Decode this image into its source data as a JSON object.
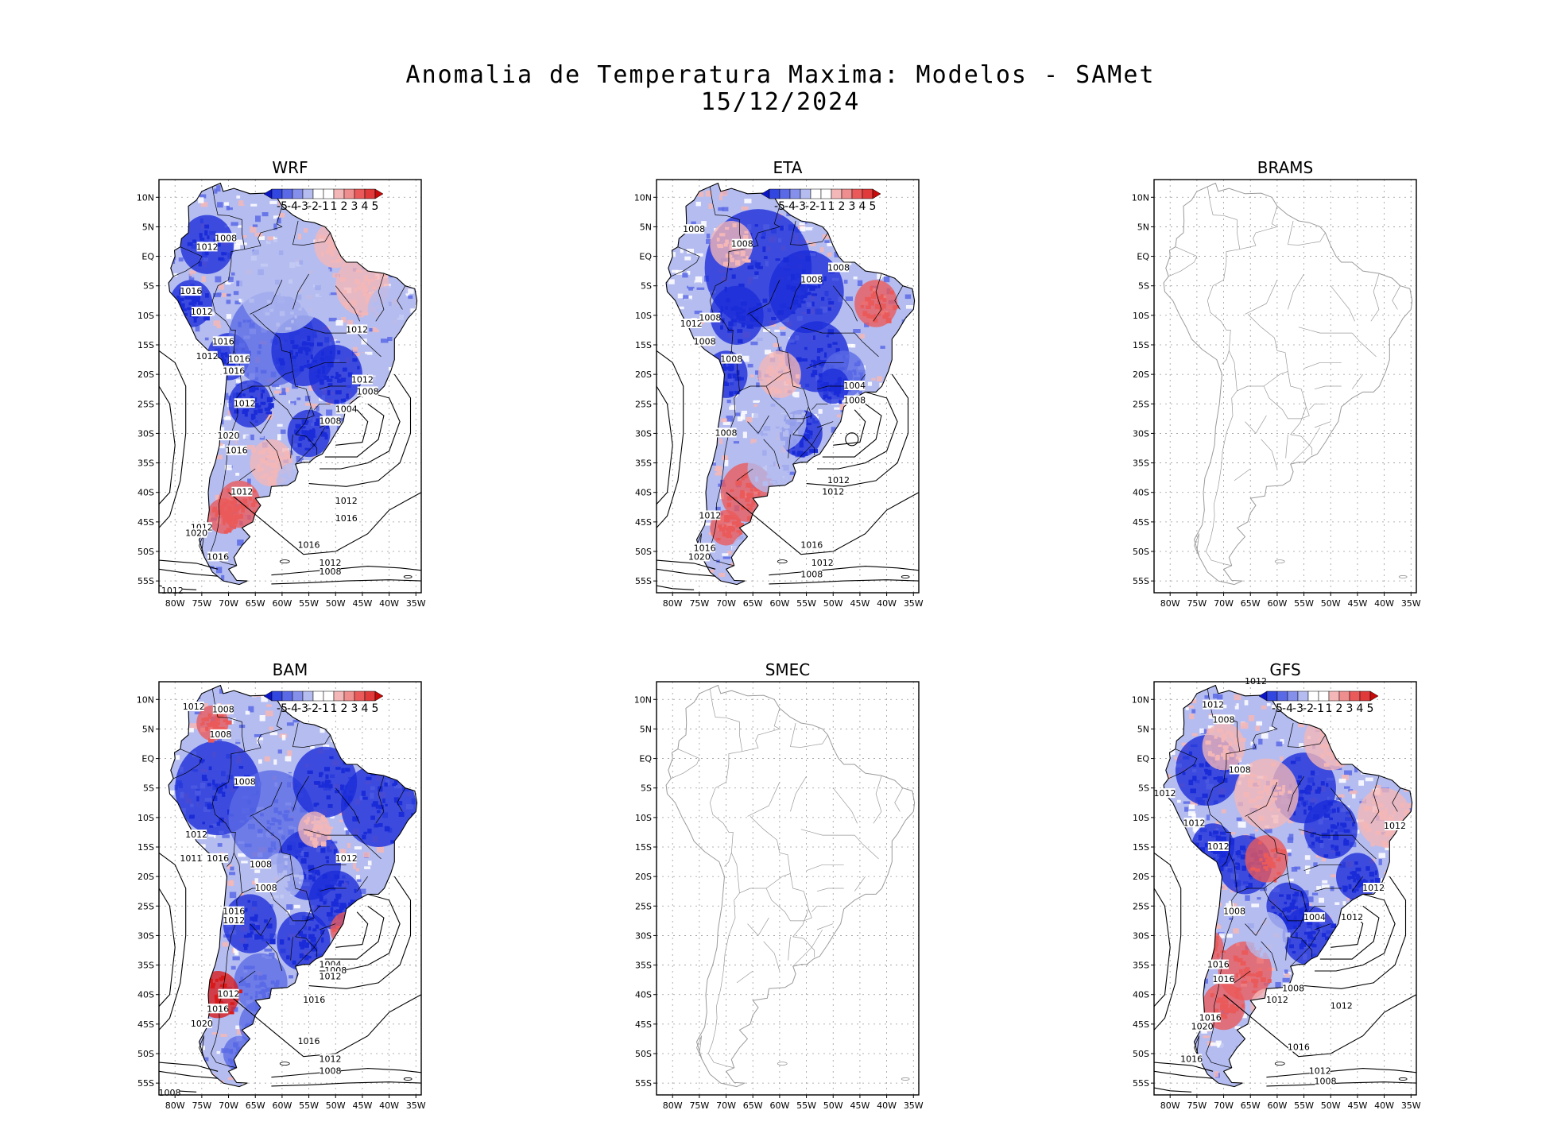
{
  "figure": {
    "title": "Anomalia de Temperatura Maxima: Modelos - SAMet",
    "date": "15/12/2024"
  },
  "colors": {
    "strong_blue": "#1a2bd8",
    "blue": "#5a6ae6",
    "light_blue": "#b4bcf0",
    "white": "#ffffff",
    "light_red": "#f4b7b7",
    "red": "#ea5a5a",
    "strong_red": "#d81a1a",
    "coast_gray": "#9a9a9a",
    "contour": "#000000"
  },
  "axes": {
    "lat_labels": [
      "10N",
      "5N",
      "EQ",
      "5S",
      "10S",
      "15S",
      "20S",
      "25S",
      "30S",
      "35S",
      "40S",
      "45S",
      "50S",
      "55S"
    ],
    "lon_labels": [
      "80W",
      "75W",
      "70W",
      "65W",
      "60W",
      "55W",
      "50W",
      "45W",
      "40W",
      "35W"
    ]
  },
  "colorbar": {
    "labels": [
      "-5",
      "-4",
      "-3",
      "-2",
      "-1",
      "1",
      "2",
      "3",
      "4",
      "5"
    ]
  },
  "panels": [
    {
      "name": "WRF",
      "has_data": true,
      "labels": [
        "1008",
        "1012",
        "1016",
        "1012",
        "1016",
        "1012",
        "1012",
        "1016",
        "1016",
        "1012",
        "1012",
        "1008",
        "1008",
        "1004",
        "1012",
        "1020",
        "1016",
        "1012",
        "1012",
        "1016",
        "1016",
        "1020",
        "1016",
        "1012",
        "1008",
        "1012"
      ]
    },
    {
      "name": "ETA",
      "has_data": true,
      "labels": [
        "1008",
        "1008",
        "1008",
        "1008",
        "1012",
        "1008",
        "1008",
        "1008",
        "1004",
        "1008",
        "1008",
        "1012",
        "1012",
        "1016",
        "1016",
        "1020",
        "1012",
        "1012",
        "1008"
      ]
    },
    {
      "name": "BRAMS",
      "has_data": false,
      "labels": []
    },
    {
      "name": "BAM",
      "has_data": true,
      "labels": [
        "1012",
        "1008",
        "1008",
        "1008",
        "1012",
        "1011",
        "1016",
        "1008",
        "1012",
        "1008",
        "1016",
        "1012",
        "1004",
        "1008",
        "1012",
        "1012",
        "1016",
        "1016",
        "1020",
        "1016",
        "1012",
        "1008",
        "1008"
      ]
    },
    {
      "name": "SMEC",
      "has_data": false,
      "labels": []
    },
    {
      "name": "GFS",
      "has_data": true,
      "labels": [
        "1012",
        "1012",
        "1008",
        "1008",
        "1012",
        "1012",
        "1012",
        "1012",
        "1012",
        "1008",
        "1004",
        "1012",
        "1008",
        "1016",
        "1012",
        "1016",
        "1016",
        "1020",
        "1016",
        "1016",
        "1012",
        "1008",
        "1012"
      ]
    }
  ]
}
